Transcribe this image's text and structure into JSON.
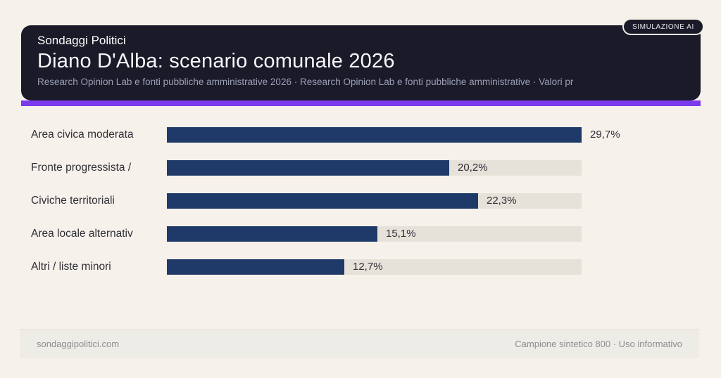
{
  "badge": {
    "label": "SIMULAZIONE AI"
  },
  "header": {
    "kicker": "Sondaggi Politici",
    "title": "Diano D'Alba: scenario comunale 2026",
    "subtitle": "Research Opinion Lab e fonti pubbliche amministrative 2026 · Research Opinion Lab e fonti pubbliche amministrative · Valori pr"
  },
  "chart_data": {
    "type": "bar",
    "orientation": "horizontal",
    "title": "Diano D'Alba: scenario comunale 2026",
    "categories": [
      "Area civica moderata",
      "Fronte progressista /",
      "Civiche territoriali",
      "Area locale alternativ",
      "Altri / liste minori"
    ],
    "values": [
      29.7,
      20.2,
      22.3,
      15.1,
      12.7
    ],
    "value_labels": [
      "29,7%",
      "20,2%",
      "22,3%",
      "15,1%",
      "12,7%"
    ],
    "unit": "%",
    "max_value": 29.7,
    "xlim": [
      0,
      29.7
    ],
    "grid": false,
    "legend": false,
    "bar_color": "#1f3a69",
    "track_color": "#e6e2da"
  },
  "colors": {
    "background": "#f6f1ea",
    "header_bg": "#1a1a29",
    "accent": "#7c3aed",
    "bar": "#1f3a69",
    "track": "#e6e2da"
  },
  "footer": {
    "left": "sondaggipolitici.com",
    "right": "Campione sintetico 800 · Uso informativo"
  }
}
